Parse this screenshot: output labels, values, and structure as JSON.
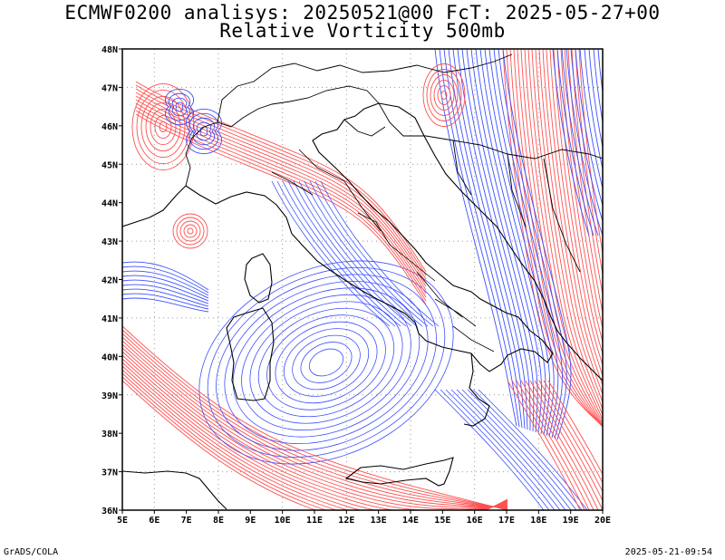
{
  "title_line1": "ECMWF0200 analisys: 20250521@00 FcT: 2025-05-27+00",
  "title_line2": "Relative Vorticity 500mb",
  "footer_left": "GrADS/COLA",
  "footer_right": "2025-05-21-09:54",
  "colors": {
    "positive_contour": "#ff5050",
    "negative_contour": "#3c50ff",
    "zero_contour": "#c06090",
    "coastline": "#000000",
    "grid": "#999999"
  },
  "map": {
    "lon_range": [
      5,
      20
    ],
    "lat_range": [
      36,
      48
    ],
    "lon_ticks": [
      "5E",
      "6E",
      "7E",
      "8E",
      "9E",
      "10E",
      "11E",
      "12E",
      "13E",
      "14E",
      "15E",
      "16E",
      "17E",
      "18E",
      "19E",
      "20E"
    ],
    "lat_ticks": [
      "36N",
      "37N",
      "38N",
      "39N",
      "40N",
      "41N",
      "42N",
      "43N",
      "44N",
      "45N",
      "46N",
      "47N",
      "48N"
    ],
    "grid": "dotted every 2 degrees"
  }
}
